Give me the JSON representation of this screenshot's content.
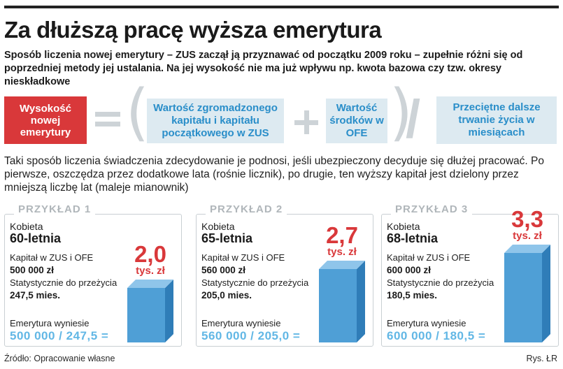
{
  "title": "Za dłuższą pracę wyższa emerytura",
  "lead": "Sposób liczenia nowej emerytury – ZUS zaczął ją przyznawać od początku 2009 roku – zupełnie różni się od poprzedniej metody jej ustalania. Na jej wysokość nie ma już wpływu np. kwota bazowa czy tzw. okresy nieskładkowe",
  "formula": {
    "result": "Wysokość nowej emerytury",
    "capital": "Wartość zgromadzonego kapitału i kapitału początkowego w ZUS",
    "ofe": "Wartość środków w OFE",
    "life": "Przeciętne dalsze trwanie życia w miesiącach"
  },
  "paragraph": "Taki sposób liczenia świadczenia zdecydowanie je podnosi, jeśli ubezpieczony decyduje się dłużej pracować. Po pierwsze, oszczędza przez dodatkowe lata (rośnie licznik), po drugie, ten wyższy kapitał jest dzielony przez mniejszą liczbę lat (maleje mianownik)",
  "examples": [
    {
      "header": "PRZYKŁAD 1",
      "woman": "Kobieta",
      "age": "60-letnia",
      "capital_label": "Kapitał w ZUS i OFE",
      "capital": "500 000 zł",
      "stat_label": "Statystycznie do przeżycia",
      "months": "247,5 mies.",
      "pension_label": "Emerytura wyniesie",
      "calc": "500 000 / 247,5 =",
      "amount": "2,0",
      "unit": "tys. zł",
      "value": 2.0
    },
    {
      "header": "PRZYKŁAD 2",
      "woman": "Kobieta",
      "age": "65-letnia",
      "capital_label": "Kapitał w ZUS i OFE",
      "capital": "560 000 zł",
      "stat_label": "Statystycznie do przeżycia",
      "months": "205,0 mies.",
      "pension_label": "Emerytura wyniesie",
      "calc": "560 000 / 205,0 =",
      "amount": "2,7",
      "unit": "tys. zł",
      "value": 2.7
    },
    {
      "header": "PRZYKŁAD 3",
      "woman": "Kobieta",
      "age": "68-letnia",
      "capital_label": "Kapitał w ZUS i OFE",
      "capital": "600 000 zł",
      "stat_label": "Statystycznie do przeżycia",
      "months": "180,5 mies.",
      "pension_label": "Emerytura wyniesie",
      "calc": "600 000 / 180,5 =",
      "amount": "3,3",
      "unit": "tys. zł",
      "value": 3.3
    }
  ],
  "source": "Źródło: Opracowanie własne",
  "credit": "Rys. ŁR",
  "colors": {
    "red": "#d9383a",
    "blue_text": "#2a8ec9",
    "blue_box": "#ddeaf1",
    "grey": "#cdd3d7",
    "bar_front": "#4f9fd6",
    "bar_side": "#2f7db8",
    "bar_top": "#8fc5ea",
    "formula_blue": "#62b7e5"
  }
}
